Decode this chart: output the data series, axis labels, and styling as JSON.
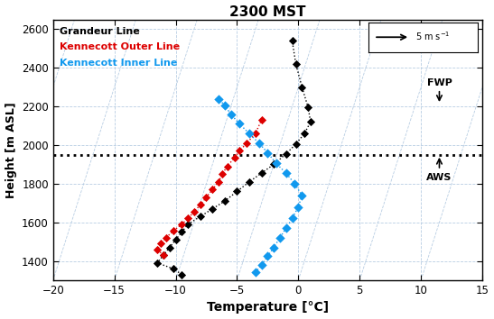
{
  "title": "2300 MST",
  "xlabel": "Temperature [°C]",
  "ylabel": "Height [m ASL]",
  "xlim": [
    -20,
    15
  ],
  "ylim": [
    1300,
    2650
  ],
  "yticks": [
    1400,
    1600,
    1800,
    2000,
    2200,
    2400,
    2600
  ],
  "xticks": [
    -20,
    -15,
    -10,
    -5,
    0,
    5,
    10,
    15
  ],
  "aws_height": 1950,
  "fwp_height": 2200,
  "grandeur_color": "#000000",
  "outer_color": "#dd0000",
  "inner_color": "#1199ee",
  "grandeur_temp": [
    -9.5,
    -10.2,
    -11.5,
    -11.0,
    -10.5,
    -10.0,
    -9.5,
    -9.0,
    -8.0,
    -7.0,
    -6.0,
    -5.0,
    -4.0,
    -3.0,
    -2.0,
    -1.0,
    -0.2,
    0.5,
    1.0,
    0.8,
    0.3,
    -0.2,
    -0.5
  ],
  "grandeur_height": [
    1330,
    1360,
    1390,
    1430,
    1470,
    1510,
    1550,
    1590,
    1630,
    1670,
    1710,
    1760,
    1810,
    1855,
    1900,
    1955,
    2005,
    2060,
    2120,
    2195,
    2300,
    2420,
    2540
  ],
  "outer_temp": [
    -11.0,
    -11.5,
    -11.2,
    -10.8,
    -10.2,
    -9.5,
    -9.0,
    -8.5,
    -8.0,
    -7.5,
    -7.0,
    -6.5,
    -6.2,
    -5.8,
    -5.2,
    -4.8,
    -4.2,
    -3.5,
    -3.0
  ],
  "outer_height": [
    1430,
    1460,
    1490,
    1520,
    1555,
    1590,
    1620,
    1655,
    1690,
    1730,
    1770,
    1810,
    1850,
    1890,
    1935,
    1970,
    2010,
    2060,
    2130
  ],
  "inner_temp": [
    -3.5,
    -3.0,
    -2.5,
    -2.0,
    -1.5,
    -1.0,
    -0.5,
    0.0,
    0.3,
    -0.3,
    -1.0,
    -1.8,
    -2.5,
    -3.2,
    -4.0,
    -4.8,
    -5.5,
    -6.0,
    -6.5
  ],
  "inner_height": [
    1340,
    1380,
    1425,
    1470,
    1520,
    1570,
    1620,
    1680,
    1740,
    1800,
    1855,
    1905,
    1960,
    2010,
    2060,
    2110,
    2160,
    2205,
    2240
  ]
}
